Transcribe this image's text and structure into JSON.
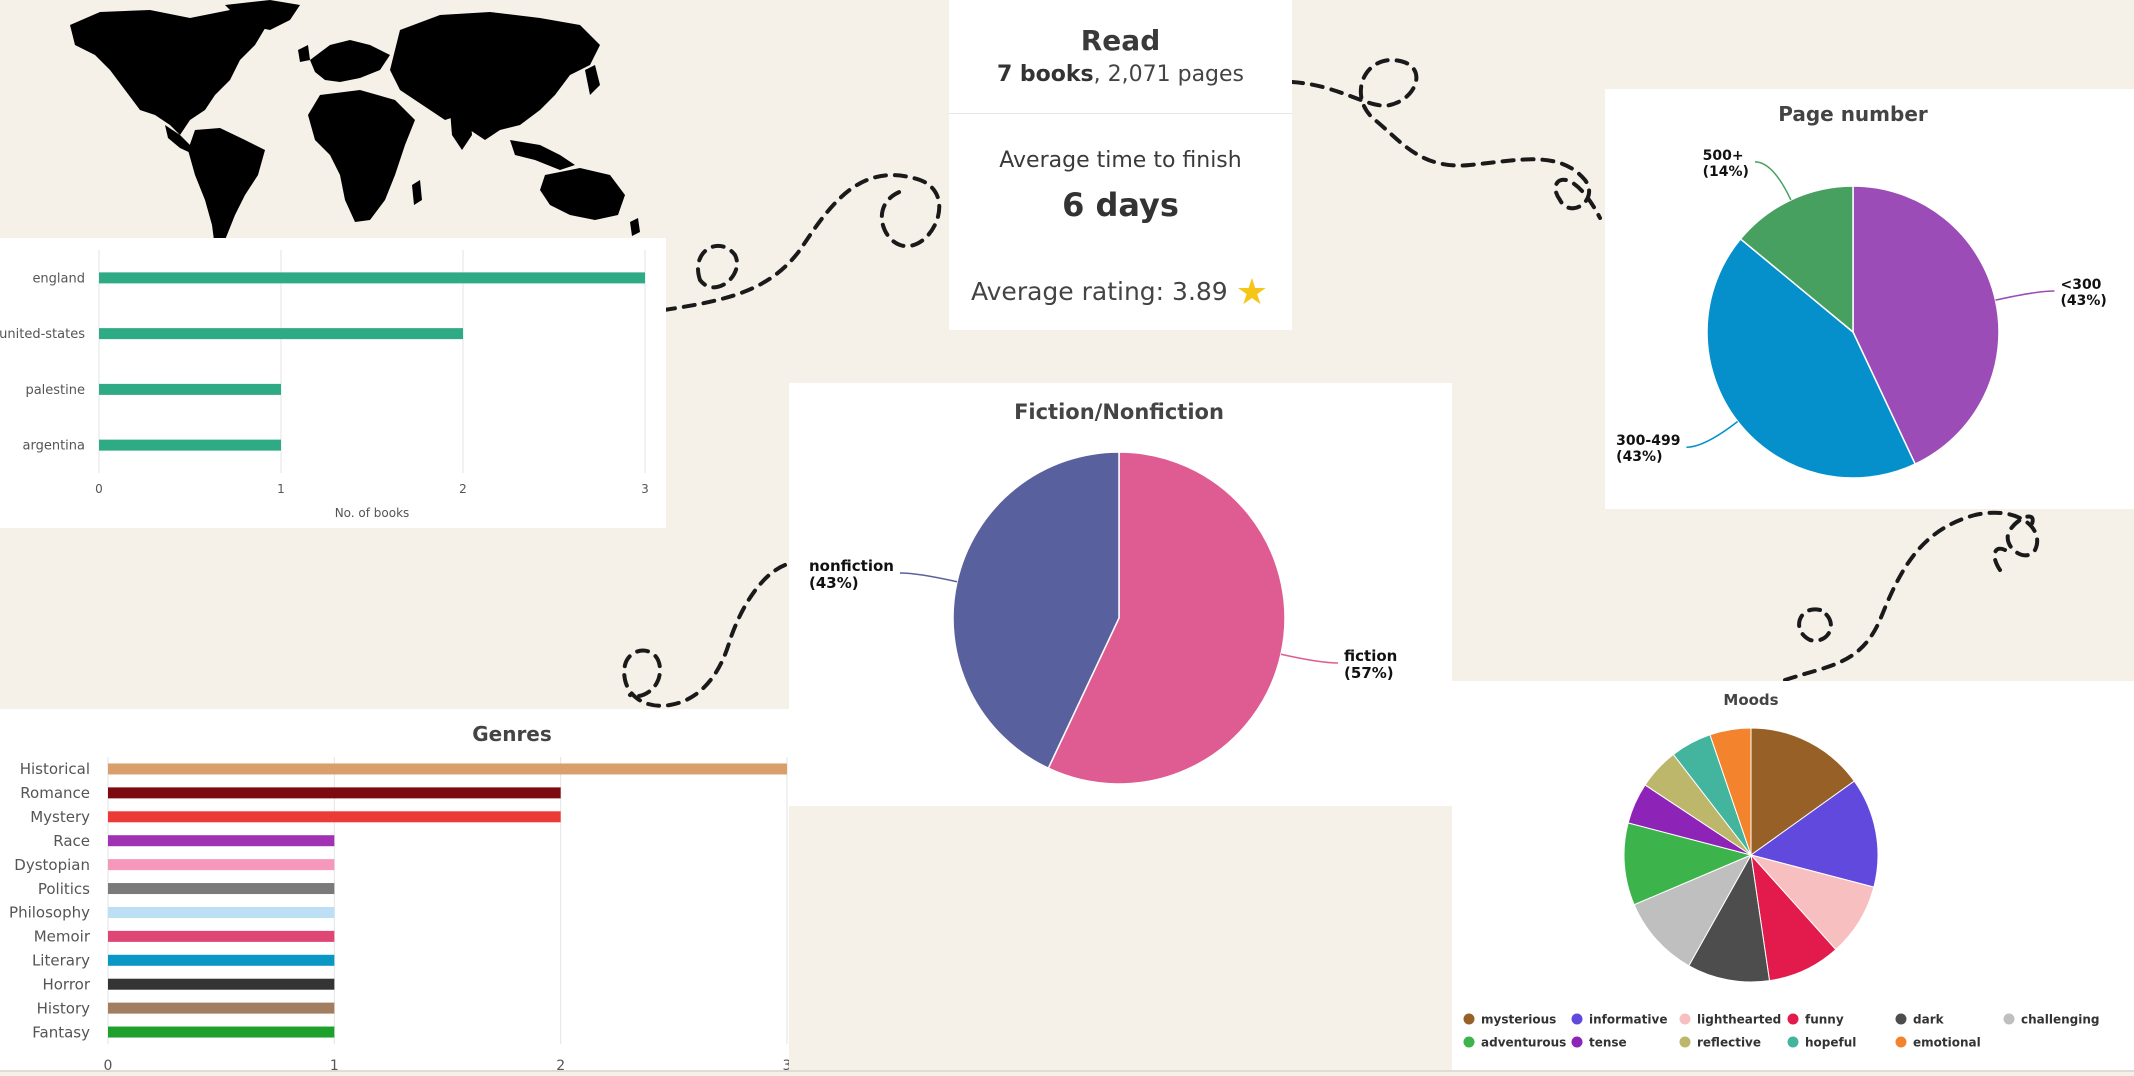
{
  "stats": {
    "read_title": "Read",
    "read_books": "7 books",
    "read_pages": ", 2,071 pages",
    "finish_label": "Average time to finish",
    "finish_value": "6 days",
    "rating_text": "Average rating: 3.89",
    "rating_icon": "star-icon"
  },
  "chart_data": [
    {
      "id": "countries",
      "type": "bar",
      "orientation": "horizontal",
      "title": "",
      "categories": [
        "england",
        "united-states",
        "palestine",
        "argentina"
      ],
      "values": [
        3,
        2,
        1,
        1
      ],
      "xlabel": "No. of books",
      "ylabel": "",
      "xlim": [
        0,
        3
      ],
      "ticks": [
        0,
        1,
        2,
        3
      ],
      "color": "#2eaa85",
      "grid": true
    },
    {
      "id": "fiction",
      "type": "pie",
      "title": "Fiction/Nonfiction",
      "slices": [
        {
          "label": "fiction",
          "value": 57,
          "pct": "(57%)",
          "color": "#df5c93"
        },
        {
          "label": "nonfiction",
          "value": 43,
          "pct": "(43%)",
          "color": "#58619e"
        }
      ]
    },
    {
      "id": "pages",
      "type": "pie",
      "title": "Page number",
      "slices": [
        {
          "label": "<300",
          "value": 43,
          "pct": "(43%)",
          "color": "#9b4cb7"
        },
        {
          "label": "300-499",
          "value": 43,
          "pct": "(43%)",
          "color": "#0590cc"
        },
        {
          "label": "500+",
          "value": 14,
          "pct": "(14%)",
          "color": "#47a060"
        }
      ]
    },
    {
      "id": "genres",
      "type": "bar",
      "orientation": "horizontal",
      "title": "Genres",
      "categories": [
        "Historical",
        "Romance",
        "Mystery",
        "Race",
        "Dystopian",
        "Politics",
        "Philosophy",
        "Memoir",
        "Literary",
        "Horror",
        "History",
        "Fantasy"
      ],
      "values": [
        3,
        2,
        2,
        1,
        1,
        1,
        1,
        1,
        1,
        1,
        1,
        1
      ],
      "colors": [
        "#d99f6b",
        "#7d0a10",
        "#ec3a36",
        "#a032b3",
        "#f598bc",
        "#7a7a7a",
        "#bcdff5",
        "#df4676",
        "#0997c6",
        "#343434",
        "#a37d60",
        "#1ea02c"
      ],
      "xlim": [
        0,
        3
      ],
      "ticks": [
        0,
        1,
        2,
        3
      ],
      "grid": true
    },
    {
      "id": "moods",
      "type": "pie",
      "title": "Moods",
      "legend": "bottom",
      "slices": [
        {
          "label": "mysterious",
          "value": 13,
          "color": "#976027"
        },
        {
          "label": "informative",
          "value": 12,
          "color": "#6149dd"
        },
        {
          "label": "lighthearted",
          "value": 8,
          "color": "#f8bfc0"
        },
        {
          "label": "funny",
          "value": 8,
          "color": "#e31a4c"
        },
        {
          "label": "dark",
          "value": 9,
          "color": "#4d4d4d"
        },
        {
          "label": "challenging",
          "value": 9,
          "color": "#bfbfbf"
        },
        {
          "label": "adventurous",
          "value": 9,
          "color": "#3cb44b"
        },
        {
          "label": "tense",
          "value": 4.5,
          "color": "#8e23b7"
        },
        {
          "label": "reflective",
          "value": 4.5,
          "color": "#bdb76b"
        },
        {
          "label": "hopeful",
          "value": 4.5,
          "color": "#43b59f"
        },
        {
          "label": "emotional",
          "value": 4.5,
          "color": "#f3842d"
        }
      ]
    }
  ]
}
